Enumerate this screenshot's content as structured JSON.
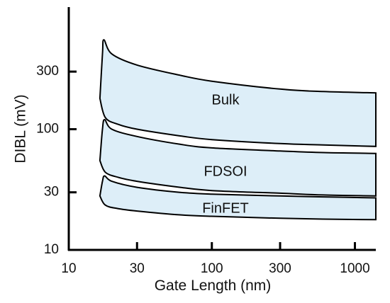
{
  "chart_data": {
    "type": "area",
    "title": "",
    "xlabel": "Gate Length (nm)",
    "ylabel": "DIBL (mV)",
    "xscale": "log",
    "yscale": "log",
    "xlim": [
      10,
      1400
    ],
    "ylim": [
      10,
      1000
    ],
    "xticks": [
      10,
      30,
      100,
      300,
      1000
    ],
    "xtick_labels": [
      "10",
      "30",
      "100",
      "300",
      "1000"
    ],
    "yticks": [
      10,
      30,
      100,
      300
    ],
    "ytick_labels": [
      "10",
      "30",
      "100",
      "300"
    ],
    "grid": false,
    "band_color": "#ddeef8",
    "series": [
      {
        "name": "Bulk",
        "upper": [
          [
            16.5,
            180
          ],
          [
            17.2,
            420
          ],
          [
            17.6,
            550
          ],
          [
            20,
            420
          ],
          [
            30,
            340
          ],
          [
            60,
            280
          ],
          [
            100,
            250
          ],
          [
            300,
            215
          ],
          [
            600,
            205
          ],
          [
            1400,
            200
          ]
        ],
        "lower": [
          [
            16.5,
            180
          ],
          [
            18,
            125
          ],
          [
            22,
            110
          ],
          [
            30,
            100
          ],
          [
            60,
            88
          ],
          [
            100,
            82
          ],
          [
            300,
            76
          ],
          [
            600,
            74
          ],
          [
            1400,
            72
          ]
        ]
      },
      {
        "name": "FDSOI",
        "upper": [
          [
            16.5,
            55
          ],
          [
            17.2,
            100
          ],
          [
            17.8,
            120
          ],
          [
            20,
            100
          ],
          [
            30,
            87
          ],
          [
            60,
            75
          ],
          [
            100,
            70
          ],
          [
            300,
            66
          ],
          [
            600,
            64
          ],
          [
            1400,
            63
          ]
        ],
        "lower": [
          [
            16.5,
            55
          ],
          [
            18,
            44
          ],
          [
            22,
            40
          ],
          [
            30,
            37
          ],
          [
            60,
            33
          ],
          [
            100,
            31
          ],
          [
            300,
            29.5
          ],
          [
            600,
            28.5
          ],
          [
            1400,
            28
          ]
        ]
      },
      {
        "name": "FinFET",
        "upper": [
          [
            16.5,
            28
          ],
          [
            17.2,
            37
          ],
          [
            17.8,
            41
          ],
          [
            20,
            37
          ],
          [
            30,
            33
          ],
          [
            60,
            30
          ],
          [
            100,
            29
          ],
          [
            300,
            28
          ],
          [
            600,
            27.5
          ],
          [
            1400,
            27
          ]
        ],
        "lower": [
          [
            16.5,
            28
          ],
          [
            18,
            23.5
          ],
          [
            22,
            22
          ],
          [
            30,
            21
          ],
          [
            60,
            19.5
          ],
          [
            100,
            19
          ],
          [
            300,
            18.3
          ],
          [
            600,
            18
          ],
          [
            1400,
            17.8
          ]
        ]
      }
    ]
  }
}
